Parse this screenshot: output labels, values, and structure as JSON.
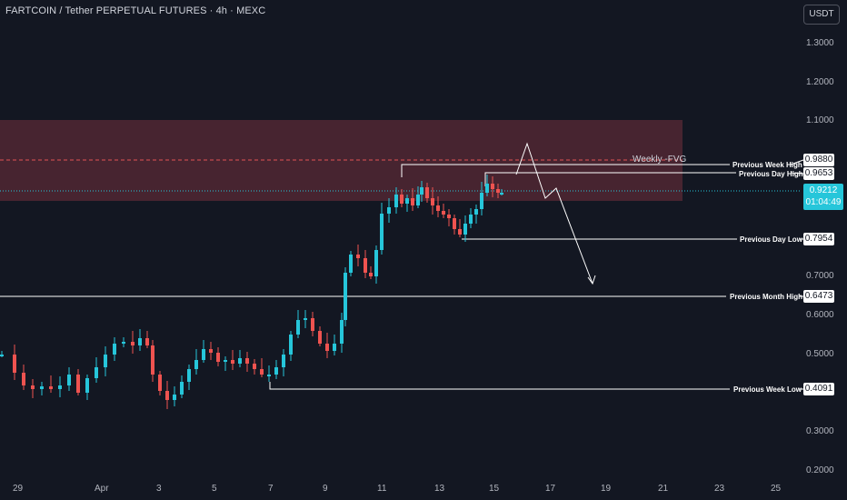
{
  "header": {
    "title": "FARTCOIN / Tether PERPETUAL FUTURES · 4h · MEXC",
    "currency_button": "USDT"
  },
  "price_axis": {
    "ticks": [
      "1.3000",
      "1.2000",
      "1.1000",
      "0.7000",
      "0.6000",
      "0.5000",
      "0.3000",
      "0.2000"
    ]
  },
  "time_axis": {
    "ticks": [
      "29",
      "Apr",
      "3",
      "5",
      "7",
      "9",
      "11",
      "13",
      "15",
      "17",
      "19",
      "21",
      "23",
      "25"
    ]
  },
  "levels": [
    {
      "label": "Previous Week High",
      "value": "0.9880"
    },
    {
      "label": "Previous Day High",
      "value": "0.9653"
    },
    {
      "label": "Previous Day Low",
      "value": "0.7954"
    },
    {
      "label": "Previous Month High",
      "value": "0.6473"
    },
    {
      "label": "Previous Week Low",
      "value": "0.4091"
    }
  ],
  "current_price": {
    "value": "0.9212",
    "countdown": "01:04:49"
  },
  "zone": {
    "label": "Weekly -FVG"
  },
  "colors": {
    "background": "#131722",
    "up_candle": "#26c6da",
    "down_candle": "#ef5350",
    "zone_fill": "#5a2a36",
    "zone_dash": "#e05555",
    "text": "#d1d4dc"
  }
}
